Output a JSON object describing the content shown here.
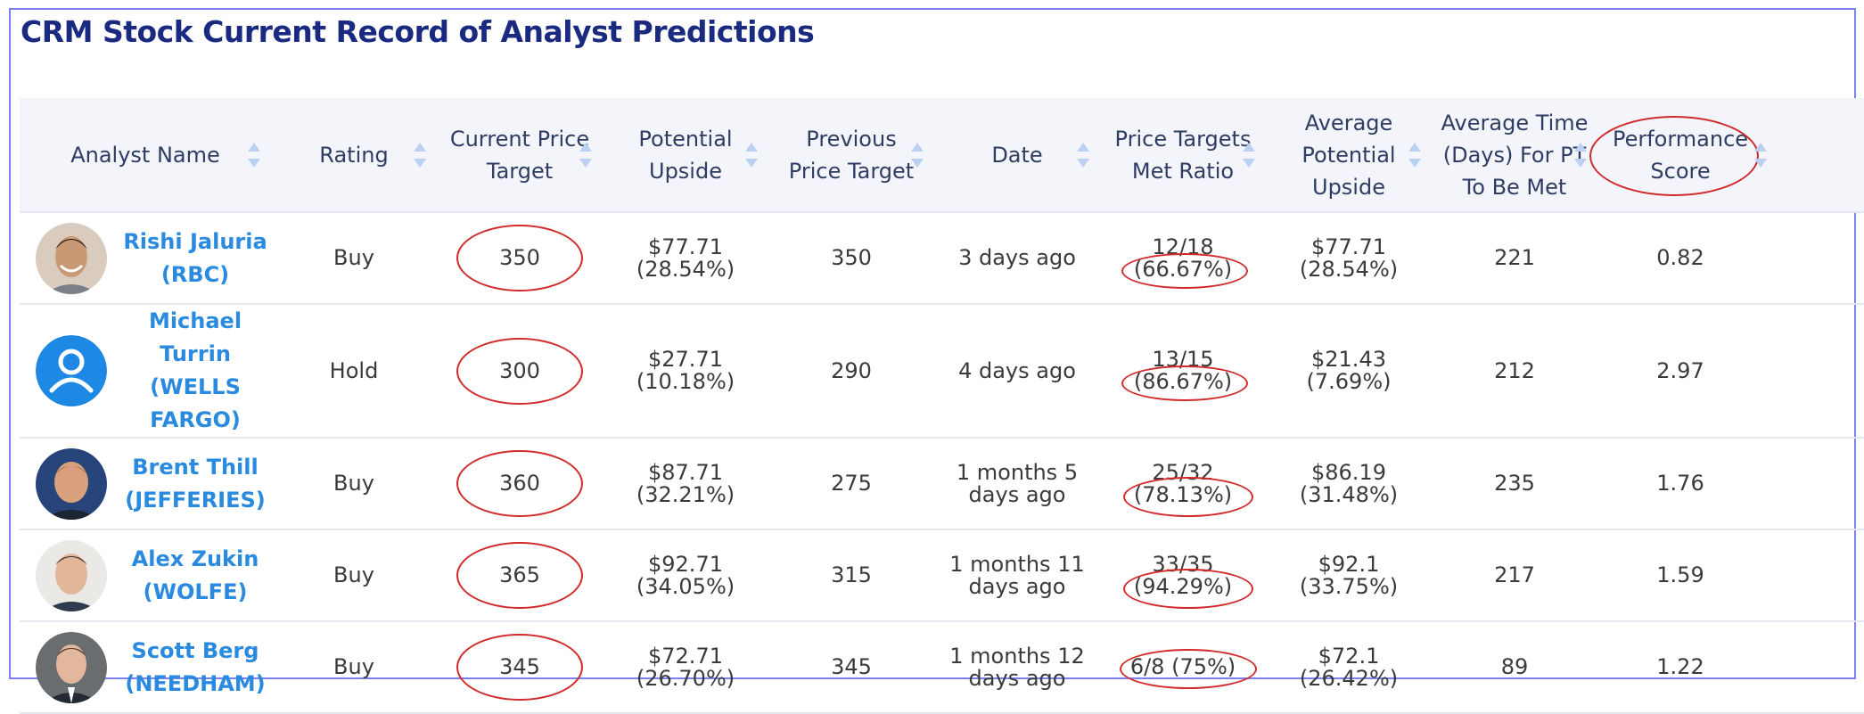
{
  "title": "CRM Stock Current Record of Analyst Predictions",
  "columns": {
    "analyst_name": "Analyst Name",
    "rating": "Rating",
    "current_pt_line1": "Current Price",
    "current_pt_line2": "Target",
    "potential_upside_line1": "Potential",
    "potential_upside_line2": "Upside",
    "previous_pt_line1": "Previous",
    "previous_pt_line2": "Price Target",
    "date": "Date",
    "met_ratio_line1": "Price Targets",
    "met_ratio_line2": "Met Ratio",
    "avg_upside_line1": "Average",
    "avg_upside_line2": "Potential",
    "avg_upside_line3": "Upside",
    "avg_time_line1": "Average Time",
    "avg_time_line2": "(Days) For PT",
    "avg_time_line3": "To Be Met",
    "perf_line1": "Performance",
    "perf_line2": "Score"
  },
  "rows": [
    {
      "name_line1": "Rishi Jaluria (RBC)",
      "name_line2": "",
      "rating": "Buy",
      "current_pt": "350",
      "upside_value": "$77.71",
      "upside_pct": "(28.54%)",
      "previous_pt": "350",
      "date_line1": "3 days ago",
      "date_line2": "",
      "ratio_line1": "12/18",
      "ratio_line2": "(66.67%)",
      "avg_upside_value": "$77.71",
      "avg_upside_pct": "(28.54%)",
      "avg_days": "221",
      "score": "0.82"
    },
    {
      "name_line1": "Michael Turrin",
      "name_line2": "(WELLS FARGO)",
      "rating": "Hold",
      "current_pt": "300",
      "upside_value": "$27.71",
      "upside_pct": "(10.18%)",
      "previous_pt": "290",
      "date_line1": "4 days ago",
      "date_line2": "",
      "ratio_line1": "13/15",
      "ratio_line2": "(86.67%)",
      "avg_upside_value": "$21.43",
      "avg_upside_pct": "(7.69%)",
      "avg_days": "212",
      "score": "2.97"
    },
    {
      "name_line1": "Brent Thill",
      "name_line2": "(JEFFERIES)",
      "rating": "Buy",
      "current_pt": "360",
      "upside_value": "$87.71",
      "upside_pct": "(32.21%)",
      "previous_pt": "275",
      "date_line1": "1 months 5",
      "date_line2": "days ago",
      "ratio_line1": "25/32",
      "ratio_line2": "(78.13%)",
      "avg_upside_value": "$86.19",
      "avg_upside_pct": "(31.48%)",
      "avg_days": "235",
      "score": "1.76"
    },
    {
      "name_line1": "Alex Zukin (WOLFE)",
      "name_line2": "",
      "rating": "Buy",
      "current_pt": "365",
      "upside_value": "$92.71",
      "upside_pct": "(34.05%)",
      "previous_pt": "315",
      "date_line1": "1 months 11",
      "date_line2": "days ago",
      "ratio_line1": "33/35",
      "ratio_line2": "(94.29%)",
      "avg_upside_value": "$92.1",
      "avg_upside_pct": "(33.75%)",
      "avg_days": "217",
      "score": "1.59"
    },
    {
      "name_line1": "Scott Berg",
      "name_line2": "(NEEDHAM)",
      "rating": "Buy",
      "current_pt": "345",
      "upside_value": "$72.71",
      "upside_pct": "(26.70%)",
      "previous_pt": "345",
      "date_line1": "1 months 12",
      "date_line2": "days ago",
      "ratio_line1": "6/8 (75%)",
      "ratio_line2": "",
      "avg_upside_value": "$72.1",
      "avg_upside_pct": "(26.42%)",
      "avg_days": "89",
      "score": "1.22"
    }
  ],
  "colors": {
    "title": "#1a2a80",
    "link": "#2a8ae0",
    "annotation": "#d22a2a",
    "header_bg": "#f3f5fb"
  }
}
